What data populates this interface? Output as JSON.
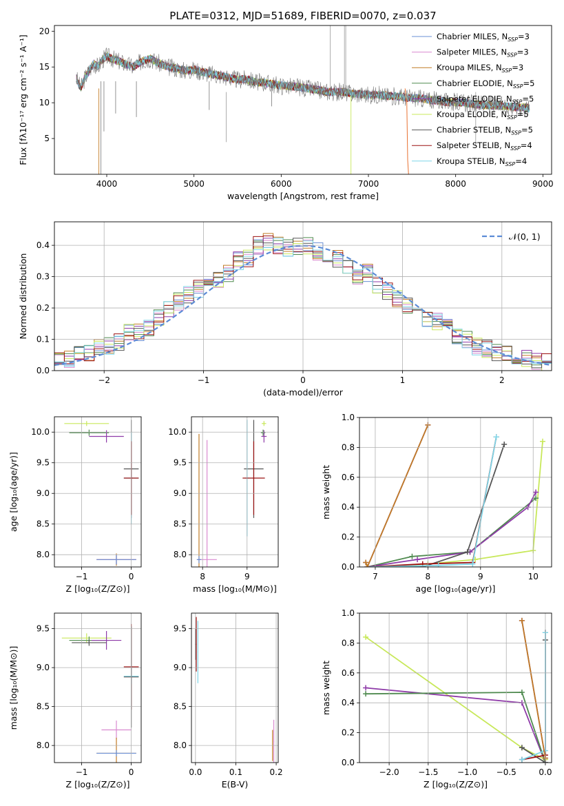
{
  "figure": {
    "title": "PLATE=0312, MJD=51689, FIBERID=0070, z=0.037"
  },
  "colors": {
    "Chabrier MILES": "#6a8fd4",
    "Salpeter MILES": "#d98ad0",
    "Kroupa MILES": "#c07a24",
    "Chabrier ELODIE": "#4f8a4f",
    "Salpeter ELODIE": "#8e3aa8",
    "Kroupa ELODIE": "#c8e85a",
    "Chabrier STELIB": "#555555",
    "Salpeter STELIB": "#9b1010",
    "Kroupa STELIB": "#7fd6e8",
    "orange": "#e87030",
    "normal_curve": "#5b8bd6"
  },
  "chart_data": [
    {
      "id": "spectrum",
      "type": "line",
      "title": "PLATE=0312, MJD=51689, FIBERID=0070, z=0.037",
      "xlabel": "wavelength [Angstrom, rest frame]",
      "ylabel": "Flux [fλ10⁻¹⁷ erg cm⁻² s⁻¹ A⁻¹]",
      "xlim": [
        3400,
        9100
      ],
      "ylim": [
        0,
        20.8
      ],
      "xticks": [
        4000,
        5000,
        6000,
        7000,
        8000,
        9000
      ],
      "yticks": [
        5,
        10,
        15,
        20
      ],
      "legend_position": "top-right",
      "legend": [
        {
          "name": "Chabrier MILES",
          "nssp": "3"
        },
        {
          "name": "Salpeter MILES",
          "nssp": "3"
        },
        {
          "name": "Kroupa MILES",
          "nssp": "3"
        },
        {
          "name": "Chabrier ELODIE",
          "nssp": "5"
        },
        {
          "name": "Salpeter ELODIE",
          "nssp": "5"
        },
        {
          "name": "Kroupa ELODIE",
          "nssp": "5"
        },
        {
          "name": "Chabrier STELIB",
          "nssp": "5"
        },
        {
          "name": "Salpeter STELIB",
          "nssp": "4"
        },
        {
          "name": "Kroupa STELIB",
          "nssp": "4"
        }
      ],
      "nssp_label": "N",
      "nssp_sub": "SSP",
      "observed_x": [
        3650,
        3700,
        3750,
        3800,
        3850,
        3900,
        3950,
        4000,
        4100,
        4200,
        4300,
        4400,
        4500,
        4600,
        4700,
        4800,
        4900,
        5000,
        5100,
        5200,
        5300,
        5400,
        5500,
        5600,
        5700,
        5800,
        5900,
        6000,
        6100,
        6200,
        6300,
        6400,
        6500,
        6600,
        6700,
        6800,
        6900,
        7000,
        7100,
        7200,
        7300,
        7400,
        7500,
        7600,
        7700,
        7800,
        7900,
        8000,
        8100,
        8200,
        8300,
        8400,
        8500,
        8600,
        8700,
        8800,
        8850
      ],
      "observed_y": [
        13.5,
        12.0,
        13.5,
        14.5,
        15.5,
        15.0,
        16.0,
        16.5,
        16.0,
        15.5,
        15.0,
        15.8,
        16.2,
        15.5,
        15.0,
        14.8,
        14.5,
        14.6,
        14.3,
        14.0,
        13.8,
        13.5,
        13.2,
        13.3,
        12.9,
        12.8,
        12.6,
        12.4,
        12.3,
        12.2,
        12.0,
        11.8,
        11.6,
        11.5,
        11.5,
        11.3,
        11.2,
        11.1,
        11.1,
        11.0,
        10.9,
        10.8,
        10.7,
        10.6,
        10.4,
        10.3,
        10.1,
        10.1,
        10.0,
        9.8,
        9.7,
        9.6,
        9.6,
        9.5,
        9.4,
        9.3,
        9.2
      ]
    },
    {
      "id": "residuals",
      "type": "line",
      "xlabel": "(data-model)/error",
      "ylabel": "Normed distribution",
      "xlim": [
        -2.5,
        2.5
      ],
      "ylim": [
        0,
        0.475
      ],
      "xticks": [
        -2,
        -1,
        0,
        1,
        2
      ],
      "yticks": [
        0.0,
        0.1,
        0.2,
        0.3,
        0.4
      ],
      "legend_position": "top-right",
      "legend": [
        {
          "name": "𝒩(0, 1)"
        }
      ],
      "normal": {
        "mu": 0,
        "sigma": 1
      },
      "bins": [
        -2.5,
        -2.4,
        -2.3,
        -2.2,
        -2.1,
        -2.0,
        -1.9,
        -1.8,
        -1.7,
        -1.6,
        -1.5,
        -1.4,
        -1.3,
        -1.2,
        -1.1,
        -1.0,
        -0.9,
        -0.8,
        -0.7,
        -0.6,
        -0.5,
        -0.4,
        -0.3,
        -0.2,
        -0.1,
        0.0,
        0.1,
        0.2,
        0.3,
        0.4,
        0.5,
        0.6,
        0.7,
        0.8,
        0.9,
        1.0,
        1.1,
        1.2,
        1.3,
        1.4,
        1.5,
        1.6,
        1.7,
        1.8,
        1.9,
        2.0,
        2.1,
        2.2,
        2.3,
        2.4
      ],
      "hist_base": [
        0.035,
        0.04,
        0.05,
        0.06,
        0.07,
        0.08,
        0.09,
        0.12,
        0.12,
        0.14,
        0.17,
        0.2,
        0.22,
        0.24,
        0.26,
        0.27,
        0.29,
        0.31,
        0.35,
        0.36,
        0.4,
        0.41,
        0.4,
        0.39,
        0.4,
        0.4,
        0.38,
        0.37,
        0.36,
        0.33,
        0.3,
        0.31,
        0.27,
        0.25,
        0.23,
        0.21,
        0.19,
        0.17,
        0.16,
        0.14,
        0.11,
        0.1,
        0.08,
        0.07,
        0.06,
        0.05,
        0.04,
        0.04,
        0.03,
        0.025
      ]
    },
    {
      "id": "age-vs-Z",
      "type": "scatter",
      "xlabel": "Z [log₁₀(Z/Z⊙)]",
      "ylabel": "age  [log₁₀(age/yr)]",
      "xlim": [
        -1.55,
        0.2
      ],
      "ylim": [
        7.8,
        10.25
      ],
      "xticks": [
        -1,
        0
      ],
      "yticks": [
        8.0,
        8.5,
        9.0,
        9.5,
        10.0
      ],
      "points": [
        {
          "series": "Kroupa ELODIE",
          "x": -0.9,
          "y": 10.14,
          "xerr": 0.45,
          "yerr": 0.04
        },
        {
          "series": "Chabrier ELODIE",
          "x": -0.85,
          "y": 9.99,
          "xerr": 0.4,
          "yerr": 0.05
        },
        {
          "series": "Salpeter ELODIE",
          "x": -0.5,
          "y": 9.93,
          "xerr": 0.35,
          "yerr": 0.1
        },
        {
          "series": "Chabrier STELIB",
          "x": 0.0,
          "y": 9.4,
          "xerr": 0.15,
          "yerr": 0.8
        },
        {
          "series": "Kroupa STELIB",
          "x": 0.0,
          "y": 9.25,
          "xerr": 0.15,
          "yerr": 0.75
        },
        {
          "series": "Salpeter STELIB",
          "x": 0.0,
          "y": 9.25,
          "xerr": 0.15,
          "yerr": 0.6
        },
        {
          "series": "Kroupa MILES",
          "x": -0.3,
          "y": 7.92,
          "xerr": 0.4,
          "yerr": 0.1
        },
        {
          "series": "Salpeter MILES",
          "x": -0.3,
          "y": 7.92,
          "xerr": 0.4,
          "yerr": 0.08
        },
        {
          "series": "Chabrier MILES",
          "x": -0.3,
          "y": 7.92,
          "xerr": 0.4,
          "yerr": 0.08
        }
      ]
    },
    {
      "id": "age-vs-mass",
      "type": "scatter",
      "xlabel": "mass [log₁₀(M/M⊙)]",
      "ylabel": "",
      "xlim": [
        7.75,
        9.7
      ],
      "ylim": [
        7.8,
        10.25
      ],
      "xticks": [
        8,
        9
      ],
      "yticks": [
        8.0,
        8.5,
        9.0,
        9.5,
        10.0
      ],
      "points": [
        {
          "series": "Kroupa ELODIE",
          "x": 9.38,
          "y": 10.14,
          "xerr": 0.05,
          "yerr": 0.04
        },
        {
          "series": "Chabrier ELODIE",
          "x": 9.36,
          "y": 9.99,
          "xerr": 0.05,
          "yerr": 0.05
        },
        {
          "series": "Salpeter ELODIE",
          "x": 9.38,
          "y": 9.93,
          "xerr": 0.06,
          "yerr": 0.1
        },
        {
          "series": "Chabrier STELIB",
          "x": 9.15,
          "y": 9.4,
          "xerr": 0.22,
          "yerr": 0.8
        },
        {
          "series": "Kroupa STELIB",
          "x": 9.0,
          "y": 9.25,
          "xerr": 0.05,
          "yerr": 0.95
        },
        {
          "series": "Salpeter STELIB",
          "x": 9.15,
          "y": 9.25,
          "xerr": 0.25,
          "yerr": 0.6
        },
        {
          "series": "Kroupa MILES",
          "x": 7.92,
          "y": 7.92,
          "xerr": 0.03,
          "yerr": 2.05
        },
        {
          "series": "Salpeter MILES",
          "x": 8.1,
          "y": 7.92,
          "xerr": 0.22,
          "yerr": 1.95
        },
        {
          "series": "Chabrier MILES",
          "x": 7.92,
          "y": 7.92,
          "xerr": 0.05,
          "yerr": 0.06
        }
      ]
    },
    {
      "id": "weight-vs-age",
      "type": "line",
      "xlabel": "age  [log₁₀(age/yr)]",
      "ylabel": "mass weight",
      "xlim": [
        6.7,
        10.35
      ],
      "ylim": [
        0,
        1.0
      ],
      "xticks": [
        7,
        8,
        9,
        10
      ],
      "yticks": [
        0.0,
        0.2,
        0.4,
        0.6,
        0.8,
        1.0
      ],
      "series": [
        {
          "name": "Kroupa ELODIE",
          "x": [
            6.85,
            8.0,
            8.9,
            10.0,
            10.18
          ],
          "y": [
            0.0,
            0.02,
            0.05,
            0.11,
            0.84
          ]
        },
        {
          "name": "Chabrier ELODIE",
          "x": [
            6.85,
            7.7,
            8.8,
            10.05
          ],
          "y": [
            0.0,
            0.07,
            0.1,
            0.46
          ]
        },
        {
          "name": "Salpeter ELODIE",
          "x": [
            6.85,
            7.8,
            8.8,
            9.9,
            10.05
          ],
          "y": [
            0.0,
            0.05,
            0.1,
            0.4,
            0.5
          ]
        },
        {
          "name": "Chabrier STELIB",
          "x": [
            6.85,
            7.9,
            8.75,
            9.45
          ],
          "y": [
            0.0,
            0.0,
            0.1,
            0.82
          ]
        },
        {
          "name": "Salpeter STELIB",
          "x": [
            6.85,
            7.9,
            8.85,
            9.3
          ],
          "y": [
            0.0,
            0.02,
            0.03,
            0.87
          ]
        },
        {
          "name": "Kroupa STELIB",
          "x": [
            6.85,
            8.2,
            8.85,
            9.3
          ],
          "y": [
            0.0,
            0.01,
            0.02,
            0.87
          ]
        },
        {
          "name": "Chabrier MILES",
          "x": [
            6.82,
            6.85,
            8.0
          ],
          "y": [
            0.03,
            0.0,
            0.95
          ]
        },
        {
          "name": "Salpeter MILES",
          "x": [
            6.82,
            6.85,
            8.0
          ],
          "y": [
            0.03,
            0.0,
            0.95
          ]
        },
        {
          "name": "Kroupa MILES",
          "x": [
            6.82,
            6.85,
            8.0
          ],
          "y": [
            0.03,
            0.0,
            0.95
          ]
        }
      ]
    },
    {
      "id": "mass-vs-Z",
      "type": "scatter",
      "xlabel": "Z [log₁₀(Z/Z⊙)]",
      "ylabel": "mass [log₁₀(M/M⊙)]",
      "xlim": [
        -1.55,
        0.2
      ],
      "ylim": [
        7.78,
        9.7
      ],
      "xticks": [
        -1,
        0
      ],
      "yticks": [
        8.0,
        8.5,
        9.0,
        9.5
      ],
      "points": [
        {
          "series": "Kroupa ELODIE",
          "x": -0.9,
          "y": 9.38,
          "xerr": 0.5,
          "yerr": 0.06
        },
        {
          "series": "Chabrier ELODIE",
          "x": -0.85,
          "y": 9.35,
          "xerr": 0.4,
          "yerr": 0.05
        },
        {
          "series": "Salpeter ELODIE",
          "x": -0.5,
          "y": 9.35,
          "xerr": 0.3,
          "yerr": 0.12
        },
        {
          "series": "Chabrier STELIB",
          "x": -0.85,
          "y": 9.32,
          "xerr": 0.35,
          "yerr": 0.04
        },
        {
          "series": "Salpeter STELIB",
          "x": 0.0,
          "y": 9.01,
          "xerr": 0.15,
          "yerr": 0.55
        },
        {
          "series": "Kroupa STELIB",
          "x": 0.0,
          "y": 8.89,
          "xerr": 0.15,
          "yerr": 0.1
        },
        {
          "series": "Chabrier STELIB",
          "x": 0.0,
          "y": 8.88,
          "xerr": 0.15,
          "yerr": 0.65
        },
        {
          "series": "Salpeter MILES",
          "x": -0.3,
          "y": 8.2,
          "xerr": 0.3,
          "yerr": 0.12
        },
        {
          "series": "Kroupa MILES",
          "x": -0.3,
          "y": 7.9,
          "xerr": 0.4,
          "yerr": 0.2
        },
        {
          "series": "Chabrier MILES",
          "x": -0.3,
          "y": 7.9,
          "xerr": 0.4,
          "yerr": 0.04
        }
      ]
    },
    {
      "id": "mass-vs-EBV",
      "type": "scatter",
      "xlabel": "E(B-V)",
      "ylabel": "",
      "xlim": [
        -0.01,
        0.205
      ],
      "ylim": [
        7.78,
        9.7
      ],
      "xticks": [
        0.0,
        0.1,
        0.2
      ],
      "yticks": [
        8.0,
        8.5,
        9.0,
        9.5
      ],
      "points": [
        {
          "series": "Salpeter STELIB",
          "x": 0.002,
          "y": 9.3,
          "xerr": 0.001,
          "yerr": 0.35
        },
        {
          "series": "Chabrier STELIB",
          "x": 0.0,
          "y": 9.3,
          "xerr": 0.001,
          "yerr": 0.2
        },
        {
          "series": "Kroupa STELIB",
          "x": 0.006,
          "y": 9.2,
          "xerr": 0.001,
          "yerr": 0.4
        },
        {
          "series": "Salpeter MILES",
          "x": 0.194,
          "y": 8.05,
          "xerr": 0.001,
          "yerr": 0.28
        },
        {
          "series": "Kroupa MILES",
          "x": 0.191,
          "y": 8.0,
          "xerr": 0.001,
          "yerr": 0.2
        }
      ]
    },
    {
      "id": "weight-vs-Z",
      "type": "line",
      "xlabel": "Z [log₁₀(Z/Z⊙)]",
      "ylabel": "mass weight",
      "xlim": [
        -2.38,
        0.08
      ],
      "ylim": [
        0,
        1.0
      ],
      "xticks": [
        -2.0,
        -1.5,
        -1.0,
        -0.5,
        0.0
      ],
      "yticks": [
        0.0,
        0.2,
        0.4,
        0.6,
        0.8,
        1.0
      ],
      "series": [
        {
          "name": "Kroupa ELODIE",
          "x": [
            -2.3,
            -0.3,
            0.0
          ],
          "y": [
            0.84,
            0.1,
            0.02
          ]
        },
        {
          "name": "Salpeter ELODIE",
          "x": [
            -2.3,
            -0.3,
            0.0
          ],
          "y": [
            0.5,
            0.4,
            0.0
          ]
        },
        {
          "name": "Chabrier ELODIE",
          "x": [
            -2.3,
            -0.3,
            0.0
          ],
          "y": [
            0.46,
            0.47,
            0.0
          ]
        },
        {
          "name": "Chabrier STELIB",
          "x": [
            -0.3,
            0.0,
            0.0
          ],
          "y": [
            0.1,
            0.0,
            0.82
          ]
        },
        {
          "name": "Salpeter STELIB",
          "x": [
            -0.3,
            0.0,
            0.0
          ],
          "y": [
            0.02,
            0.05,
            0.87
          ]
        },
        {
          "name": "Kroupa STELIB",
          "x": [
            -0.3,
            0.0,
            0.0
          ],
          "y": [
            0.02,
            0.08,
            0.87
          ]
        },
        {
          "name": "Chabrier MILES",
          "x": [
            -0.3,
            0.0
          ],
          "y": [
            0.95,
            0.03
          ]
        },
        {
          "name": "Salpeter MILES",
          "x": [
            -0.3,
            0.0
          ],
          "y": [
            0.95,
            0.03
          ]
        },
        {
          "name": "Kroupa MILES",
          "x": [
            -0.3,
            0.0
          ],
          "y": [
            0.95,
            0.03
          ]
        }
      ]
    }
  ]
}
